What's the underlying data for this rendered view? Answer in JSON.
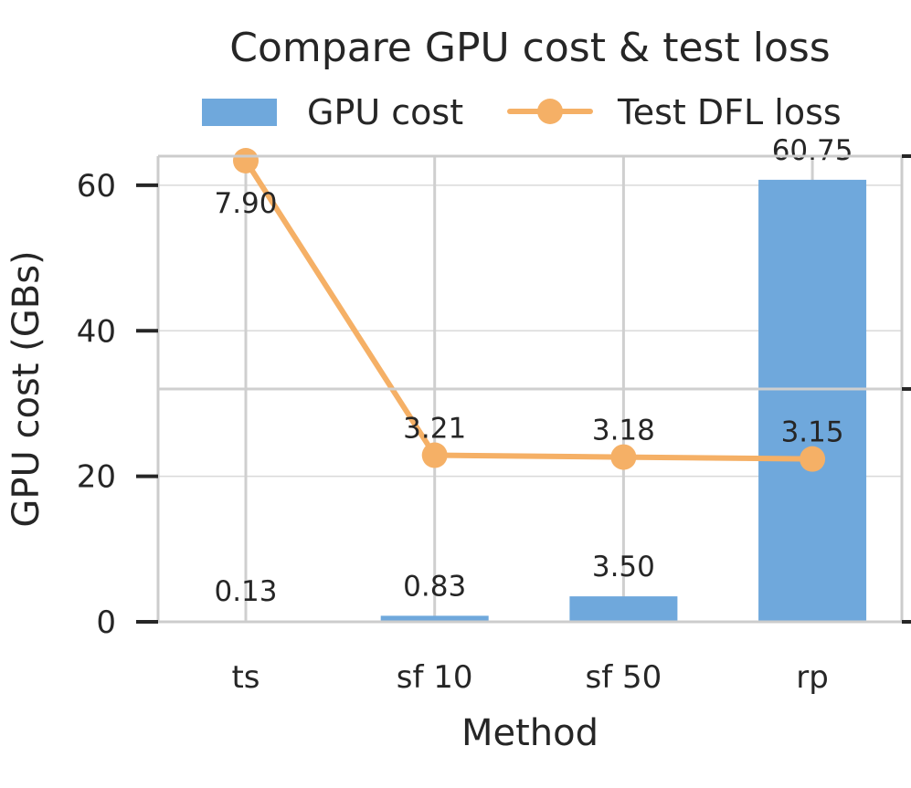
{
  "chart_data": {
    "type": "bar",
    "title": "Compare GPU cost & test loss",
    "xlabel": "Method",
    "ylabel": "GPU cost (GBs)",
    "categories": [
      "ts",
      "sf 10",
      "sf 50",
      "rp"
    ],
    "ylim": [
      0,
      64
    ],
    "yticks": [
      0,
      20,
      40,
      60
    ],
    "secondary_ylim": [
      3.0,
      7.9
    ],
    "legend_position": "top-center",
    "series": [
      {
        "name": "GPU cost",
        "type": "bar",
        "axis": "left",
        "color": "#6fa8dc",
        "values": [
          0.13,
          0.83,
          3.5,
          60.75
        ],
        "labels": [
          "0.13",
          "0.83",
          "3.50",
          "60.75"
        ]
      },
      {
        "name": "Test DFL loss",
        "type": "line",
        "axis": "right",
        "color": "#f5b066",
        "values": [
          7.9,
          3.21,
          3.18,
          3.15
        ],
        "labels": [
          "7.90",
          "3.21",
          "3.18",
          "3.15"
        ]
      }
    ]
  }
}
